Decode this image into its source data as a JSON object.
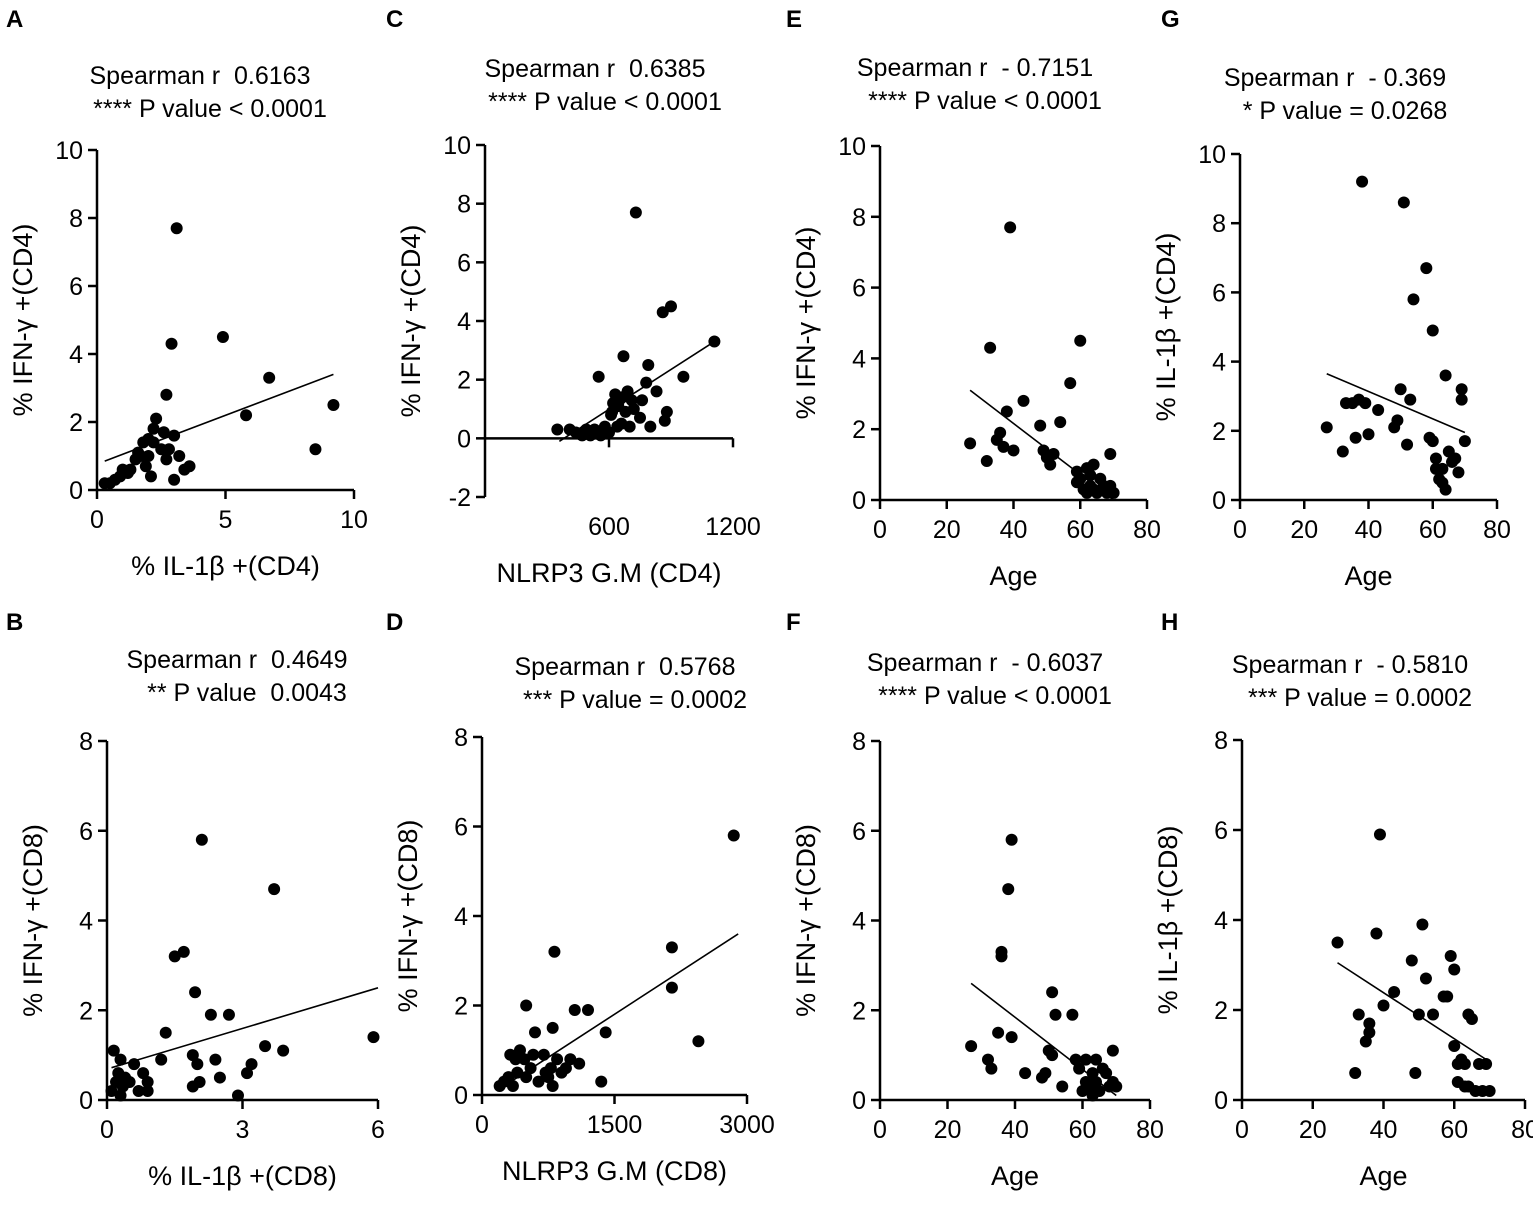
{
  "colors": {
    "ink": "#000000",
    "background": "#ffffff"
  },
  "chart_data": [
    {
      "id": "A",
      "type": "scatter",
      "stat_line1": "Spearman r  0.6163",
      "stat_line2": "**** P value < 0.0001",
      "xlabel": "% IL-1β +(CD4)",
      "ylabel": "% IFN-γ +(CD4)",
      "xlim": [
        0,
        10
      ],
      "ylim": [
        0,
        10
      ],
      "xticks": [
        0,
        5,
        10
      ],
      "yticks": [
        0,
        2,
        4,
        6,
        8,
        10
      ],
      "fit": [
        [
          0.3,
          0.85
        ],
        [
          9.2,
          3.4
        ]
      ],
      "points": [
        [
          0.3,
          0.2
        ],
        [
          0.5,
          0.2
        ],
        [
          0.7,
          0.3
        ],
        [
          0.9,
          0.4
        ],
        [
          1.0,
          0.6
        ],
        [
          1.2,
          0.5
        ],
        [
          1.3,
          0.6
        ],
        [
          1.5,
          0.9
        ],
        [
          1.6,
          1.1
        ],
        [
          1.7,
          1.0
        ],
        [
          1.8,
          1.4
        ],
        [
          1.9,
          0.7
        ],
        [
          2.0,
          1.0
        ],
        [
          2.0,
          1.5
        ],
        [
          2.1,
          0.4
        ],
        [
          2.2,
          1.4
        ],
        [
          2.2,
          1.8
        ],
        [
          2.3,
          2.1
        ],
        [
          2.5,
          1.2
        ],
        [
          2.6,
          1.7
        ],
        [
          2.7,
          0.9
        ],
        [
          2.7,
          2.8
        ],
        [
          2.8,
          1.2
        ],
        [
          2.9,
          4.3
        ],
        [
          3.0,
          1.6
        ],
        [
          3.0,
          0.3
        ],
        [
          3.1,
          7.7
        ],
        [
          3.2,
          1.0
        ],
        [
          3.4,
          0.6
        ],
        [
          3.6,
          0.7
        ],
        [
          4.9,
          4.5
        ],
        [
          5.8,
          2.2
        ],
        [
          6.7,
          3.3
        ],
        [
          8.5,
          1.2
        ],
        [
          9.2,
          2.5
        ]
      ]
    },
    {
      "id": "C",
      "type": "scatter",
      "stat_line1": "Spearman r  0.6385",
      "stat_line2": "**** P value < 0.0001",
      "xlabel": "NLRP3 G.M (CD4)",
      "ylabel": "% IFN-γ +(CD4)",
      "xlim": [
        0,
        1200
      ],
      "ylim": [
        -2,
        10
      ],
      "xticks": [
        600,
        1200
      ],
      "yticks": [
        -2,
        0,
        2,
        4,
        6,
        8,
        10
      ],
      "fit": [
        [
          360,
          -0.1
        ],
        [
          1110,
          3.3
        ]
      ],
      "points": [
        [
          350,
          0.3
        ],
        [
          410,
          0.3
        ],
        [
          440,
          0.2
        ],
        [
          470,
          0.1
        ],
        [
          490,
          0.3
        ],
        [
          500,
          0.2
        ],
        [
          510,
          0.1
        ],
        [
          530,
          0.3
        ],
        [
          550,
          2.1
        ],
        [
          560,
          0.1
        ],
        [
          580,
          0.4
        ],
        [
          600,
          0.2
        ],
        [
          610,
          0.8
        ],
        [
          615,
          0.9
        ],
        [
          620,
          1.2
        ],
        [
          630,
          1.5
        ],
        [
          640,
          0.4
        ],
        [
          645,
          1.1
        ],
        [
          650,
          1.3
        ],
        [
          660,
          0.5
        ],
        [
          665,
          1.4
        ],
        [
          670,
          2.8
        ],
        [
          680,
          0.9
        ],
        [
          690,
          1.6
        ],
        [
          700,
          0.4
        ],
        [
          710,
          1.3
        ],
        [
          720,
          1.0
        ],
        [
          730,
          7.7
        ],
        [
          750,
          0.7
        ],
        [
          760,
          1.3
        ],
        [
          780,
          1.9
        ],
        [
          790,
          2.5
        ],
        [
          800,
          0.4
        ],
        [
          830,
          1.6
        ],
        [
          860,
          4.3
        ],
        [
          870,
          0.6
        ],
        [
          880,
          0.9
        ],
        [
          900,
          4.5
        ],
        [
          960,
          2.1
        ],
        [
          1110,
          3.3
        ]
      ]
    },
    {
      "id": "E",
      "type": "scatter",
      "stat_line1": "Spearman r  - 0.7151",
      "stat_line2": "**** P value < 0.0001",
      "xlabel": "Age",
      "ylabel": "% IFN-γ +(CD4)",
      "xlim": [
        0,
        80
      ],
      "ylim": [
        0,
        10
      ],
      "xticks": [
        0,
        20,
        40,
        60,
        80
      ],
      "yticks": [
        0,
        2,
        4,
        6,
        8,
        10
      ],
      "fit": [
        [
          27,
          3.1
        ],
        [
          70,
          0
        ]
      ],
      "points": [
        [
          27,
          1.6
        ],
        [
          32,
          1.1
        ],
        [
          33,
          4.3
        ],
        [
          35,
          1.7
        ],
        [
          36,
          1.9
        ],
        [
          37,
          1.5
        ],
        [
          38,
          2.5
        ],
        [
          39,
          7.7
        ],
        [
          40,
          1.4
        ],
        [
          43,
          2.8
        ],
        [
          48,
          2.1
        ],
        [
          49,
          1.4
        ],
        [
          50,
          1.2
        ],
        [
          51,
          1.0
        ],
        [
          52,
          1.3
        ],
        [
          54,
          2.2
        ],
        [
          57,
          3.3
        ],
        [
          59,
          0.8
        ],
        [
          59,
          0.5
        ],
        [
          60,
          0.6
        ],
        [
          60,
          4.5
        ],
        [
          61,
          0.3
        ],
        [
          62,
          0.9
        ],
        [
          62,
          0.2
        ],
        [
          63,
          0.4
        ],
        [
          63,
          0.7
        ],
        [
          64,
          1.0
        ],
        [
          64,
          0.3
        ],
        [
          65,
          0.2
        ],
        [
          66,
          0.6
        ],
        [
          67,
          0.4
        ],
        [
          68,
          0.2
        ],
        [
          69,
          1.3
        ],
        [
          69,
          0.4
        ],
        [
          70,
          0.2
        ]
      ]
    },
    {
      "id": "G",
      "type": "scatter",
      "stat_line1": "Spearman r  - 0.369",
      "stat_line2": "* P value = 0.0268",
      "xlabel": "Age",
      "ylabel": "% IL-1β +(CD4)",
      "xlim": [
        0,
        80
      ],
      "ylim": [
        0,
        10
      ],
      "xticks": [
        0,
        20,
        40,
        60,
        80
      ],
      "yticks": [
        0,
        2,
        4,
        6,
        8,
        10
      ],
      "fit": [
        [
          27,
          3.65
        ],
        [
          70,
          1.95
        ]
      ],
      "points": [
        [
          27,
          2.1
        ],
        [
          32,
          1.4
        ],
        [
          33,
          2.8
        ],
        [
          35,
          2.8
        ],
        [
          36,
          1.8
        ],
        [
          37,
          2.9
        ],
        [
          38,
          9.2
        ],
        [
          39,
          2.8
        ],
        [
          40,
          1.9
        ],
        [
          43,
          2.6
        ],
        [
          48,
          2.1
        ],
        [
          49,
          2.3
        ],
        [
          50,
          3.2
        ],
        [
          51,
          8.6
        ],
        [
          52,
          1.6
        ],
        [
          53,
          2.9
        ],
        [
          54,
          5.8
        ],
        [
          58,
          6.7
        ],
        [
          59,
          1.8
        ],
        [
          60,
          4.9
        ],
        [
          60,
          1.7
        ],
        [
          61,
          1.2
        ],
        [
          61,
          0.9
        ],
        [
          62,
          0.6
        ],
        [
          63,
          0.5
        ],
        [
          63,
          0.9
        ],
        [
          64,
          3.6
        ],
        [
          64,
          0.3
        ],
        [
          65,
          1.4
        ],
        [
          66,
          1.1
        ],
        [
          67,
          1.2
        ],
        [
          68,
          0.8
        ],
        [
          69,
          3.2
        ],
        [
          69,
          2.9
        ],
        [
          70,
          1.7
        ]
      ]
    },
    {
      "id": "B",
      "type": "scatter",
      "stat_line1": "Spearman r  0.4649",
      "stat_line2": "** P value  0.0043",
      "xlabel": "% IL-1β +(CD8)",
      "ylabel": "% IFN-γ +(CD8)",
      "xlim": [
        0,
        6
      ],
      "ylim": [
        0,
        8
      ],
      "xticks": [
        0,
        3,
        6
      ],
      "yticks": [
        0,
        2,
        4,
        6,
        8
      ],
      "fit": [
        [
          0.1,
          0.72
        ],
        [
          6.0,
          2.5
        ]
      ],
      "points": [
        [
          0.1,
          0.2
        ],
        [
          0.15,
          1.1
        ],
        [
          0.2,
          0.4
        ],
        [
          0.25,
          0.6
        ],
        [
          0.3,
          0.9
        ],
        [
          0.3,
          0.1
        ],
        [
          0.35,
          0.3
        ],
        [
          0.4,
          0.5
        ],
        [
          0.5,
          0.4
        ],
        [
          0.6,
          0.8
        ],
        [
          0.7,
          0.2
        ],
        [
          0.8,
          0.6
        ],
        [
          0.9,
          0.4
        ],
        [
          0.9,
          0.2
        ],
        [
          1.2,
          0.9
        ],
        [
          1.3,
          1.5
        ],
        [
          1.5,
          3.2
        ],
        [
          1.7,
          3.3
        ],
        [
          1.9,
          1.0
        ],
        [
          1.9,
          0.3
        ],
        [
          1.95,
          2.4
        ],
        [
          2.0,
          0.8
        ],
        [
          2.05,
          0.4
        ],
        [
          2.1,
          5.8
        ],
        [
          2.3,
          1.9
        ],
        [
          2.4,
          0.9
        ],
        [
          2.5,
          0.5
        ],
        [
          2.7,
          1.9
        ],
        [
          2.9,
          0.1
        ],
        [
          3.1,
          0.6
        ],
        [
          3.2,
          0.8
        ],
        [
          3.5,
          1.2
        ],
        [
          3.7,
          4.7
        ],
        [
          3.9,
          1.1
        ],
        [
          5.9,
          1.4
        ]
      ]
    },
    {
      "id": "D",
      "type": "scatter",
      "stat_line1": "Spearman r  0.5768",
      "stat_line2": "*** P value = 0.0002",
      "xlabel": "NLRP3 G.M (CD8)",
      "ylabel": "% IFN-γ +(CD8)",
      "xlim": [
        0,
        3000
      ],
      "ylim": [
        0,
        8
      ],
      "xticks": [
        0,
        1500,
        3000
      ],
      "yticks": [
        0,
        2,
        4,
        6,
        8
      ],
      "fit": [
        [
          250,
          0.2
        ],
        [
          2900,
          3.6
        ]
      ],
      "points": [
        [
          200,
          0.2
        ],
        [
          250,
          0.3
        ],
        [
          300,
          0.4
        ],
        [
          320,
          0.9
        ],
        [
          350,
          0.2
        ],
        [
          380,
          0.8
        ],
        [
          400,
          0.5
        ],
        [
          430,
          1.0
        ],
        [
          480,
          0.8
        ],
        [
          500,
          0.4
        ],
        [
          500,
          2.0
        ],
        [
          550,
          0.6
        ],
        [
          580,
          0.9
        ],
        [
          600,
          1.4
        ],
        [
          640,
          0.3
        ],
        [
          700,
          0.9
        ],
        [
          720,
          0.5
        ],
        [
          750,
          0.4
        ],
        [
          780,
          0.6
        ],
        [
          800,
          0.2
        ],
        [
          800,
          1.5
        ],
        [
          820,
          3.2
        ],
        [
          850,
          0.8
        ],
        [
          900,
          0.5
        ],
        [
          950,
          0.6
        ],
        [
          1000,
          0.8
        ],
        [
          1050,
          1.9
        ],
        [
          1100,
          0.7
        ],
        [
          1200,
          1.9
        ],
        [
          1350,
          0.3
        ],
        [
          1400,
          1.4
        ],
        [
          2150,
          3.3
        ],
        [
          2150,
          2.4
        ],
        [
          2450,
          1.2
        ],
        [
          2850,
          5.8
        ]
      ]
    },
    {
      "id": "F",
      "type": "scatter",
      "stat_line1": "Spearman r  - 0.6037",
      "stat_line2": "**** P value < 0.0001",
      "xlabel": "Age",
      "ylabel": "% IFN-γ +(CD8)",
      "xlim": [
        0,
        80
      ],
      "ylim": [
        0,
        8
      ],
      "xticks": [
        0,
        20,
        40,
        60,
        80
      ],
      "yticks": [
        0,
        2,
        4,
        6,
        8
      ],
      "fit": [
        [
          27,
          2.6
        ],
        [
          70,
          0.1
        ]
      ],
      "points": [
        [
          27,
          1.2
        ],
        [
          32,
          0.9
        ],
        [
          33,
          0.7
        ],
        [
          35,
          1.5
        ],
        [
          36,
          3.3
        ],
        [
          36,
          3.2
        ],
        [
          38,
          4.7
        ],
        [
          39,
          1.4
        ],
        [
          39,
          5.8
        ],
        [
          43,
          0.6
        ],
        [
          48,
          0.5
        ],
        [
          49,
          0.6
        ],
        [
          50,
          1.1
        ],
        [
          51,
          2.4
        ],
        [
          51,
          1.0
        ],
        [
          52,
          1.9
        ],
        [
          54,
          0.3
        ],
        [
          57,
          1.9
        ],
        [
          58,
          0.9
        ],
        [
          59,
          0.7
        ],
        [
          60,
          0.2
        ],
        [
          61,
          0.4
        ],
        [
          61,
          0.9
        ],
        [
          62,
          0.3
        ],
        [
          63,
          0.6
        ],
        [
          63,
          0.1
        ],
        [
          64,
          0.9
        ],
        [
          64,
          0.4
        ],
        [
          65,
          0.2
        ],
        [
          66,
          0.7
        ],
        [
          67,
          0.6
        ],
        [
          68,
          0.3
        ],
        [
          69,
          1.1
        ],
        [
          69,
          0.4
        ],
        [
          70,
          0.3
        ]
      ]
    },
    {
      "id": "H",
      "type": "scatter",
      "stat_line1": "Spearman r  - 0.5810",
      "stat_line2": "*** P value = 0.0002",
      "xlabel": "Age",
      "ylabel": "% IL-1β +(CD8)",
      "xlim": [
        0,
        80
      ],
      "ylim": [
        0,
        8
      ],
      "xticks": [
        0,
        20,
        40,
        60,
        80
      ],
      "yticks": [
        0,
        2,
        4,
        6,
        8
      ],
      "fit": [
        [
          27,
          3.05
        ],
        [
          70,
          0.85
        ]
      ],
      "points": [
        [
          27,
          3.5
        ],
        [
          32,
          0.6
        ],
        [
          33,
          1.9
        ],
        [
          35,
          1.3
        ],
        [
          36,
          1.5
        ],
        [
          36,
          1.7
        ],
        [
          38,
          3.7
        ],
        [
          39,
          5.9
        ],
        [
          40,
          2.1
        ],
        [
          43,
          2.4
        ],
        [
          48,
          3.1
        ],
        [
          49,
          0.6
        ],
        [
          50,
          1.9
        ],
        [
          51,
          3.9
        ],
        [
          52,
          2.7
        ],
        [
          54,
          1.9
        ],
        [
          57,
          2.3
        ],
        [
          58,
          2.3
        ],
        [
          59,
          3.2
        ],
        [
          60,
          2.9
        ],
        [
          60,
          1.2
        ],
        [
          61,
          0.8
        ],
        [
          61,
          0.4
        ],
        [
          62,
          0.9
        ],
        [
          63,
          0.3
        ],
        [
          63,
          0.8
        ],
        [
          64,
          1.9
        ],
        [
          64,
          0.3
        ],
        [
          65,
          1.8
        ],
        [
          66,
          0.2
        ],
        [
          67,
          0.8
        ],
        [
          68,
          0.2
        ],
        [
          69,
          0.8
        ],
        [
          70,
          0.2
        ]
      ]
    }
  ]
}
